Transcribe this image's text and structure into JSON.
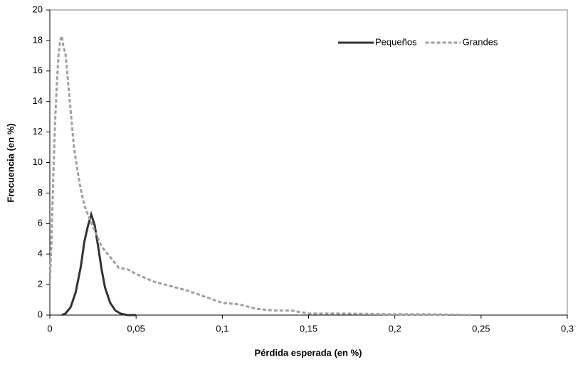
{
  "chart_data": {
    "type": "line",
    "xlabel": "Pérdida esperada (en %)",
    "ylabel": "Frecuencia (en %)",
    "xlim": [
      0,
      0.3
    ],
    "ylim": [
      0,
      20
    ],
    "xticks": [
      0,
      {
        "value": 0.05,
        "label": "0,05"
      },
      {
        "value": 0.1,
        "label": "0,1"
      },
      {
        "value": 0.15,
        "label": "0,15"
      },
      {
        "value": 0.2,
        "label": "0,2"
      },
      {
        "value": 0.25,
        "label": "0,25"
      },
      {
        "value": 0.3,
        "label": "0,3"
      }
    ],
    "yticks": [
      0,
      2,
      4,
      6,
      8,
      10,
      12,
      14,
      16,
      18,
      20
    ],
    "legend": "upper right",
    "series": [
      {
        "name": "Pequeños",
        "color": "#333333",
        "dash": false,
        "x": [
          0.007,
          0.009,
          0.012,
          0.015,
          0.018,
          0.02,
          0.022,
          0.024,
          0.026,
          0.028,
          0.03,
          0.032,
          0.035,
          0.038,
          0.041,
          0.045,
          0.05
        ],
        "values": [
          0,
          0.1,
          0.5,
          1.5,
          3.2,
          4.8,
          5.8,
          6.6,
          5.9,
          4.5,
          3.0,
          1.8,
          0.8,
          0.3,
          0.1,
          0,
          0
        ]
      },
      {
        "name": "Grandes",
        "color": "#a0a0a0",
        "dash": true,
        "x": [
          0,
          0.001,
          0.002,
          0.003,
          0.004,
          0.005,
          0.006,
          0.007,
          0.008,
          0.009,
          0.01,
          0.012,
          0.014,
          0.016,
          0.018,
          0.02,
          0.022,
          0.025,
          0.03,
          0.035,
          0.04,
          0.045,
          0.05,
          0.06,
          0.07,
          0.08,
          0.09,
          0.1,
          0.11,
          0.12,
          0.13,
          0.14,
          0.15,
          0.17,
          0.2,
          0.22,
          0.245
        ],
        "values": [
          2.0,
          5,
          9,
          12.5,
          15,
          17,
          18,
          18.3,
          17.5,
          17.2,
          16,
          13.5,
          11,
          9.5,
          8.2,
          7.2,
          6.6,
          5.8,
          4.5,
          3.8,
          3.1,
          3.0,
          2.7,
          2.2,
          1.9,
          1.6,
          1.2,
          0.8,
          0.7,
          0.4,
          0.3,
          0.3,
          0.1,
          0.1,
          0.05,
          0.05,
          0
        ]
      }
    ]
  }
}
